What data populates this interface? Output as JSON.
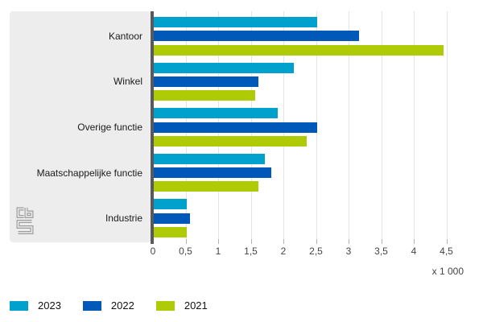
{
  "chart_data": {
    "type": "bar",
    "orientation": "horizontal",
    "categories": [
      "Kantoor",
      "Winkel",
      "Overige functie",
      "Maatschappelijke functie",
      "Industrie"
    ],
    "series": [
      {
        "name": "2023",
        "color": "#00a1cd",
        "values": [
          2.5,
          2.15,
          1.9,
          1.7,
          0.5
        ]
      },
      {
        "name": "2022",
        "color": "#0058b8",
        "values": [
          3.15,
          1.6,
          2.5,
          1.8,
          0.55
        ]
      },
      {
        "name": "2021",
        "color": "#afcb05",
        "values": [
          4.45,
          1.55,
          2.35,
          1.6,
          0.5
        ]
      }
    ],
    "x_ticks": [
      "0",
      "0,5",
      "1",
      "1,5",
      "2",
      "2,5",
      "3",
      "3,5",
      "4",
      "4,5"
    ],
    "x_tick_values": [
      0,
      0.5,
      1,
      1.5,
      2,
      2.5,
      3,
      3.5,
      4,
      4.5
    ],
    "xlim": [
      0,
      4.5
    ],
    "xlabel": "x 1 000",
    "grid": "vertical",
    "legend_position": "bottom-left"
  },
  "legend": {
    "items": [
      {
        "label": "2023",
        "color": "#00a1cd"
      },
      {
        "label": "2022",
        "color": "#0058b8"
      },
      {
        "label": "2021",
        "color": "#afcb05"
      }
    ]
  },
  "logo": {
    "name": "CBS"
  },
  "colors": {
    "panel_background": "#ededed",
    "axis": "#58595b",
    "gridline": "#e4e4e4",
    "tick": "#b3b3b3",
    "tick_text": "#454545",
    "category_text": "#1a1a1a",
    "logo_gray": "#9c9c9c"
  }
}
